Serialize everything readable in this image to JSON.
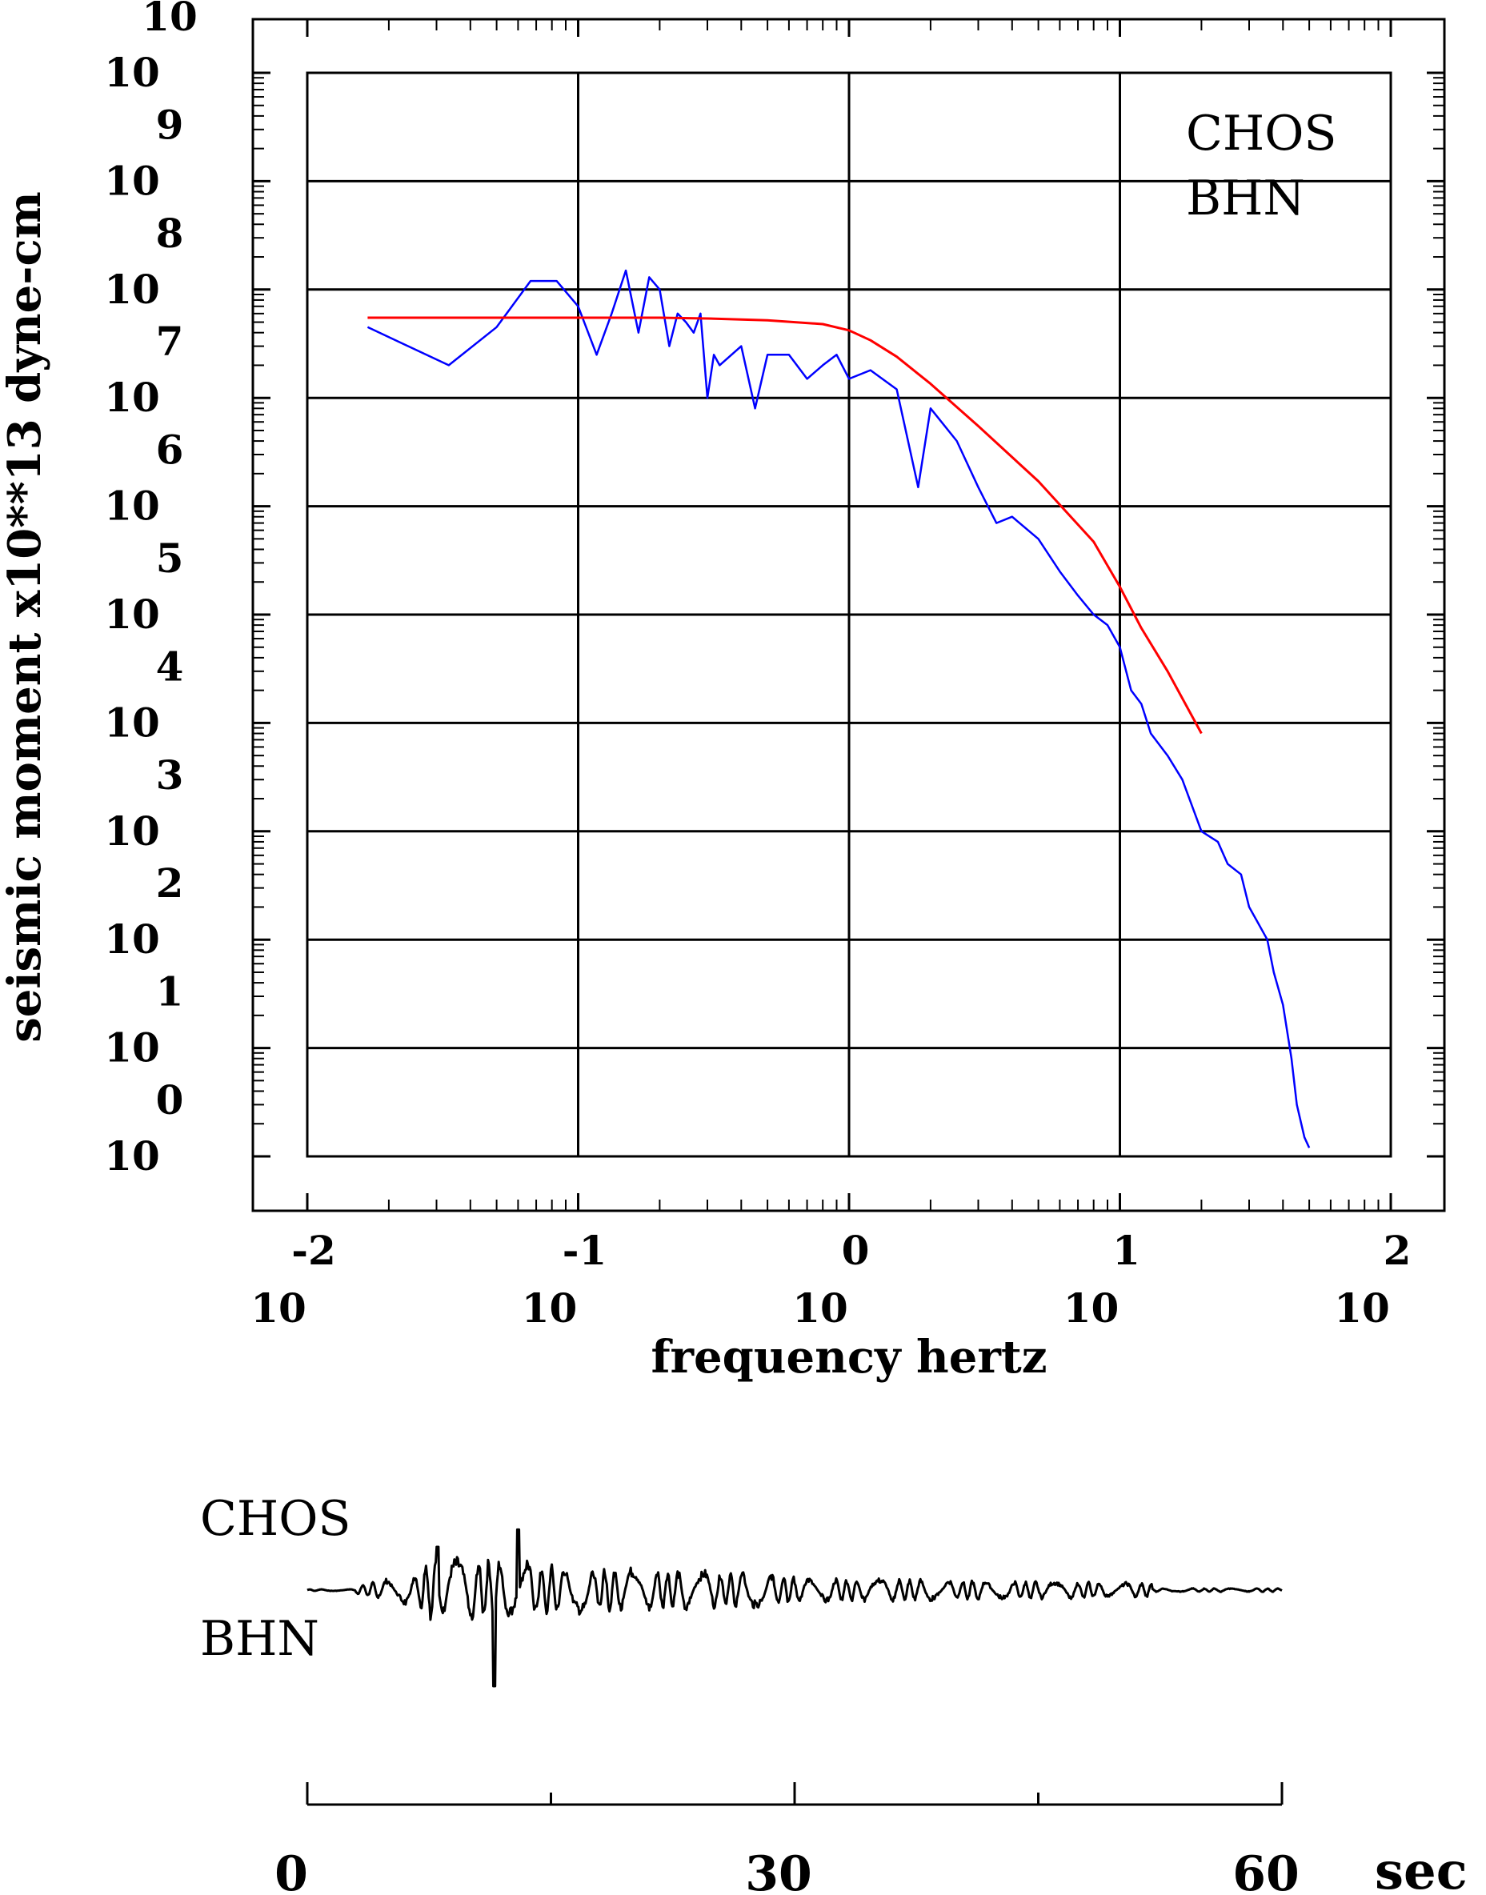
{
  "chart_data": [
    {
      "type": "line",
      "scale": {
        "x": "log",
        "y": "log"
      },
      "xlabel": "frequency  hertz",
      "ylabel": "seismic moment x10**13 dyne-cm",
      "xlim": [
        0.01,
        100
      ],
      "ylim": [
        1,
        10000000000
      ],
      "grid": true,
      "x_tick_labels": [
        {
          "base": "10",
          "exp": "-2"
        },
        {
          "base": "10",
          "exp": "-1"
        },
        {
          "base": "10",
          "exp": "0"
        },
        {
          "base": "10",
          "exp": "1"
        },
        {
          "base": "10",
          "exp": "2"
        }
      ],
      "y_tick_labels": [
        {
          "base": "10",
          "exp": "0"
        },
        {
          "base": "10",
          "exp": "1"
        },
        {
          "base": "10",
          "exp": "2"
        },
        {
          "base": "10",
          "exp": "3"
        },
        {
          "base": "10",
          "exp": "4"
        },
        {
          "base": "10",
          "exp": "5"
        },
        {
          "base": "10",
          "exp": "6"
        },
        {
          "base": "10",
          "exp": "7"
        },
        {
          "base": "10",
          "exp": "8"
        },
        {
          "base": "10",
          "exp": "9"
        },
        {
          "base": "10",
          "exp": "10"
        }
      ],
      "annotations": [
        "CHOS",
        "BHN"
      ],
      "series": [
        {
          "color": "#0000ff",
          "style": "noisy spectrum",
          "x": [
            0.0167,
            0.0333,
            0.05,
            0.0667,
            0.0833,
            0.1,
            0.117,
            0.133,
            0.15,
            0.167,
            0.183,
            0.2,
            0.217,
            0.233,
            0.25,
            0.267,
            0.283,
            0.3,
            0.317,
            0.333,
            0.4,
            0.45,
            0.5,
            0.6,
            0.7,
            0.8,
            0.9,
            1.0,
            1.2,
            1.5,
            1.8,
            2.0,
            2.5,
            3.0,
            3.5,
            4.0,
            5.0,
            6.0,
            7.0,
            8.0,
            9.0,
            10.0,
            11.0,
            12.0,
            13.0,
            15.0,
            17.0,
            20.0,
            23.0,
            25.0,
            28.0,
            30.0,
            32.0,
            35.0,
            37.0,
            40.0,
            43.0,
            45.0,
            48.0,
            50.0
          ],
          "y": [
            45000000,
            20000000,
            45000000,
            120000000,
            120000000,
            70000000,
            25000000,
            60000000,
            150000000,
            40000000,
            130000000,
            100000000,
            30000000,
            60000000,
            50000000,
            40000000,
            60000000,
            10000000,
            25000000,
            20000000,
            30000000,
            8000000,
            25000000,
            25000000,
            15000000,
            20000000,
            25000000,
            15000000,
            18000000,
            12000000,
            1500000,
            8000000,
            4000000,
            1500000,
            700000,
            800000,
            500000,
            250000,
            150000,
            100000,
            80000,
            50000,
            20000,
            15000,
            8000,
            5000,
            3000,
            1000,
            800,
            500,
            400,
            200,
            150,
            100,
            50,
            25,
            8,
            3,
            1.5,
            1.2
          ]
        },
        {
          "color": "#ff0000",
          "style": "smooth model fit",
          "x": [
            0.0167,
            0.03,
            0.05,
            0.08,
            0.1,
            0.2,
            0.3,
            0.5,
            0.8,
            1.0,
            1.2,
            1.5,
            2.0,
            3.0,
            5.0,
            8.0,
            10.0,
            12.0,
            15.0,
            20.0
          ],
          "y": [
            55000000,
            55000000,
            55000000,
            55000000,
            55000000,
            55000000,
            54000000,
            52000000,
            48000000,
            42000000,
            34000000,
            24000000,
            13500000,
            5500000,
            1700000,
            470000,
            180000,
            75000,
            30000,
            8000
          ]
        }
      ]
    },
    {
      "type": "line",
      "style": "waveform",
      "xlabel": "sec",
      "xlim": [
        0,
        60
      ],
      "x_tick_labels": [
        "0",
        "30",
        "60"
      ],
      "annotations": [
        "CHOS",
        "BHN"
      ],
      "series": [
        {
          "color": "#000000",
          "amplitude_at_peaks": [
            {
              "t": 11.5,
              "a": -1.0
            },
            {
              "t": 13.0,
              "a": 0.63
            },
            {
              "t": 8.0,
              "a": 0.45
            }
          ]
        }
      ]
    }
  ]
}
